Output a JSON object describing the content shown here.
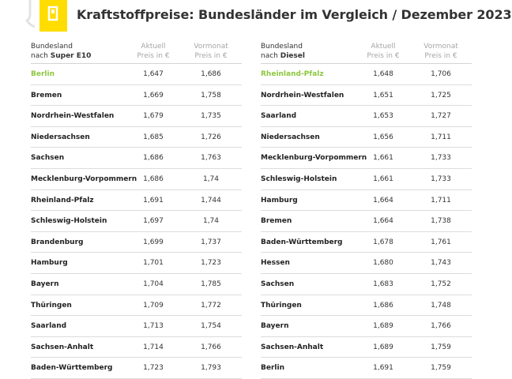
{
  "title": "Kraftstoffpreise: Bundesländer im Vergleich / Dezember 2023",
  "colors": {
    "accent": "#ffdd00",
    "highlight": "#8dc63f",
    "icon": "#ffffff"
  },
  "icons": {
    "logo": "fuel-pump-icon"
  },
  "left_table": {
    "header": {
      "col1_line1": "Bundesland",
      "col1_prefix": "nach ",
      "col1_fuel": "Super E10",
      "col2_line1": "Aktuell",
      "col2_line2": "Preis in €",
      "col3_line1": "Vormonat",
      "col3_line2": "Preis in €"
    },
    "rows": [
      {
        "state": "Berlin",
        "current": "1,647",
        "previous": "1,686"
      },
      {
        "state": "Bremen",
        "current": "1,669",
        "previous": "1,758"
      },
      {
        "state": "Nordrhein-Westfalen",
        "current": "1,679",
        "previous": "1,735"
      },
      {
        "state": "Niedersachsen",
        "current": "1,685",
        "previous": "1,726"
      },
      {
        "state": "Sachsen",
        "current": "1,686",
        "previous": "1,763"
      },
      {
        "state": "Mecklenburg-Vorpommern",
        "current": "1,686",
        "previous": "1,74"
      },
      {
        "state": "Rheinland-Pfalz",
        "current": "1,691",
        "previous": "1,744"
      },
      {
        "state": "Schleswig-Holstein",
        "current": "1,697",
        "previous": "1,74"
      },
      {
        "state": "Brandenburg",
        "current": "1,699",
        "previous": "1,737"
      },
      {
        "state": "Hamburg",
        "current": "1,701",
        "previous": "1,723"
      },
      {
        "state": "Bayern",
        "current": "1,704",
        "previous": "1,785"
      },
      {
        "state": "Thüringen",
        "current": "1,709",
        "previous": "1,772"
      },
      {
        "state": "Saarland",
        "current": "1,713",
        "previous": "1,754"
      },
      {
        "state": "Sachsen-Anhalt",
        "current": "1,714",
        "previous": "1,766"
      },
      {
        "state": "Baden-Württemberg",
        "current": "1,723",
        "previous": "1,793"
      }
    ]
  },
  "right_table": {
    "header": {
      "col1_line1": "Bundesland",
      "col1_prefix": "nach ",
      "col1_fuel": "Diesel",
      "col2_line1": "Aktuell",
      "col2_line2": "Preis in €",
      "col3_line1": "Vormonat",
      "col3_line2": "Preis in €"
    },
    "rows": [
      {
        "state": "Rheinland-Pfalz",
        "current": "1,648",
        "previous": "1,706"
      },
      {
        "state": "Nordrhein-Westfalen",
        "current": "1,651",
        "previous": "1,725"
      },
      {
        "state": "Saarland",
        "current": "1,653",
        "previous": "1,727"
      },
      {
        "state": "Niedersachsen",
        "current": "1,656",
        "previous": "1,711"
      },
      {
        "state": "Mecklenburg-Vorpommern",
        "current": "1,661",
        "previous": "1,733"
      },
      {
        "state": "Schleswig-Holstein",
        "current": "1,661",
        "previous": "1,733"
      },
      {
        "state": "Hamburg",
        "current": "1,664",
        "previous": "1,711"
      },
      {
        "state": "Bremen",
        "current": "1,664",
        "previous": "1,738"
      },
      {
        "state": "Baden-Württemberg",
        "current": "1,678",
        "previous": "1,761"
      },
      {
        "state": "Hessen",
        "current": "1,680",
        "previous": "1,743"
      },
      {
        "state": "Sachsen",
        "current": "1,683",
        "previous": "1,752"
      },
      {
        "state": "Thüringen",
        "current": "1,686",
        "previous": "1,748"
      },
      {
        "state": "Bayern",
        "current": "1,689",
        "previous": "1,766"
      },
      {
        "state": "Sachsen-Anhalt",
        "current": "1,689",
        "previous": "1,759"
      },
      {
        "state": "Berlin",
        "current": "1,691",
        "previous": "1,759"
      }
    ]
  }
}
